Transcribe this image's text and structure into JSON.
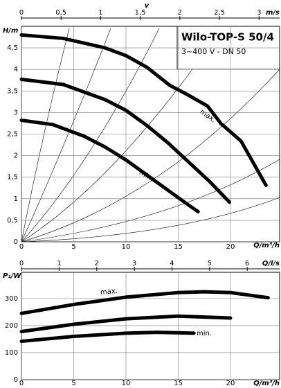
{
  "chart_data": [
    {
      "type": "line",
      "title": "Wilo-TOP-S 50/4",
      "subtitle": "3~400 V - DN 50",
      "xlabel": "Q/m³/h",
      "ylabel": "H/m",
      "x2label": "v",
      "x2unit": "m/s",
      "xlim": [
        0,
        24.7
      ],
      "xticks": [
        0,
        5,
        10,
        15,
        20
      ],
      "x2lim": [
        0,
        3.26
      ],
      "x2ticks": [
        0,
        {
          "value": 0.5,
          "label": "0,5"
        },
        1,
        {
          "value": 1.5,
          "label": "1,5"
        },
        2,
        {
          "value": 2.5,
          "label": "2,5"
        },
        3
      ],
      "ylim": [
        0,
        5
      ],
      "yticks": [
        0,
        {
          "value": 0.5,
          "label": "0,5"
        },
        1,
        {
          "value": 1.5,
          "label": "1,5"
        },
        2,
        {
          "value": 2.5,
          "label": "2,5"
        },
        3,
        {
          "value": 3.5,
          "label": "3,5"
        },
        4,
        {
          "value": 4.5,
          "label": "4,5"
        }
      ],
      "grid": true,
      "annotations": [
        "max.",
        "min."
      ],
      "series": [
        {
          "color": "#000000",
          "x": [
            0,
            4,
            8,
            10,
            12,
            14.2,
            16,
            17.8,
            19.1,
            21,
            23.4
          ],
          "values": [
            4.8,
            4.72,
            4.5,
            4.32,
            4.05,
            3.63,
            3.4,
            3.15,
            2.74,
            2.34,
            1.31
          ]
        },
        {
          "color": "#000000",
          "x": [
            0,
            4,
            8,
            10,
            12,
            14,
            16,
            18,
            19.9
          ],
          "values": [
            3.77,
            3.65,
            3.3,
            3.05,
            2.7,
            2.3,
            1.85,
            1.4,
            0.92
          ]
        },
        {
          "color": "#000000",
          "x": [
            0,
            3,
            6,
            8,
            10,
            12,
            14,
            16,
            16.9
          ],
          "values": [
            2.82,
            2.72,
            2.45,
            2.2,
            1.9,
            1.55,
            1.2,
            0.85,
            0.7
          ]
        }
      ]
    },
    {
      "type": "line",
      "xlabel": "Q/m³/h",
      "ylabel": "P₁/W",
      "x2label": "Q/l/s",
      "xlim": [
        0,
        24.7
      ],
      "xticks": [
        0,
        5,
        10,
        15,
        20
      ],
      "x2lim": [
        0,
        6.86
      ],
      "x2ticks": [
        0,
        1,
        2,
        3,
        4,
        5,
        6
      ],
      "ylim": [
        0,
        397
      ],
      "yticks": [
        0,
        100,
        200,
        300
      ],
      "grid": true,
      "annotations": [
        "max.",
        "min."
      ],
      "series": [
        {
          "color": "#000000",
          "x": [
            0,
            5,
            10,
            15,
            17.5,
            20,
            23.6
          ],
          "values": [
            245,
            278,
            305,
            322,
            325,
            322,
            303
          ]
        },
        {
          "color": "#000000",
          "x": [
            0,
            5,
            10,
            15,
            20
          ],
          "values": [
            178,
            205,
            225,
            235,
            228
          ]
        },
        {
          "color": "#000000",
          "x": [
            0,
            5,
            10,
            13,
            16.5
          ],
          "values": [
            142,
            160,
            172,
            175,
            172
          ]
        }
      ]
    }
  ]
}
